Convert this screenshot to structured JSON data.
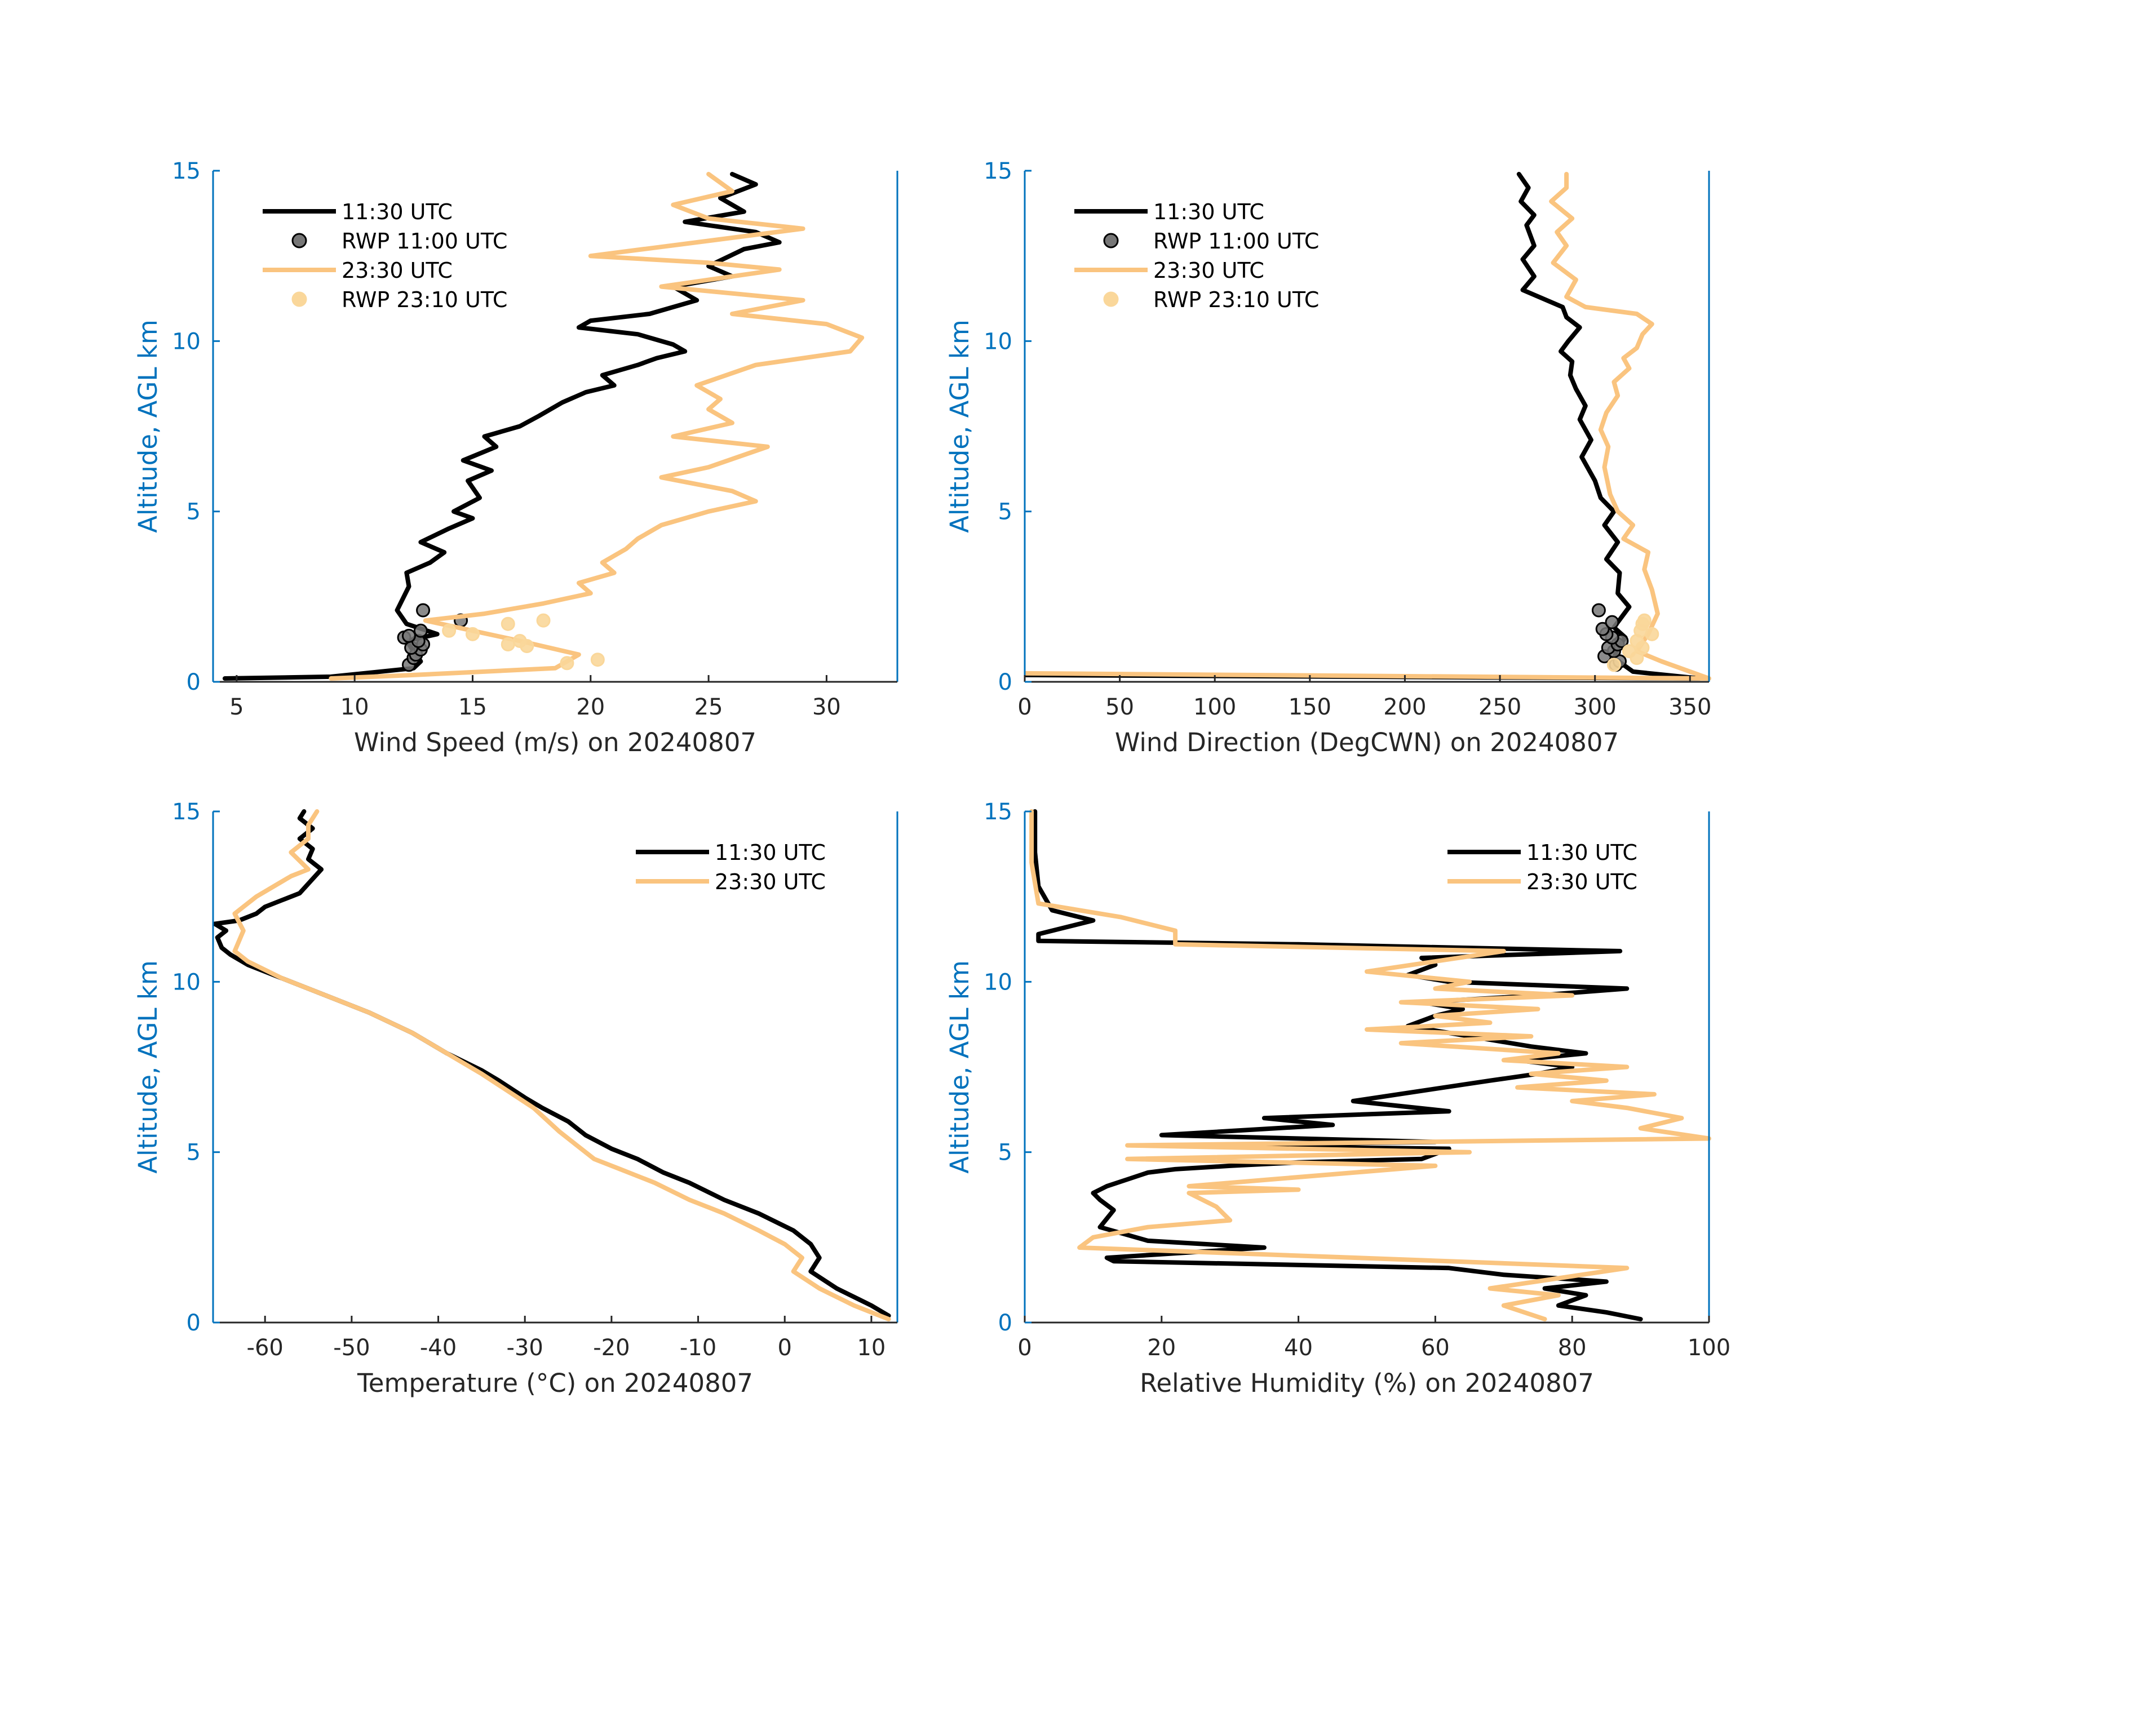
{
  "colors": {
    "axis_y": "#0072BD",
    "axis_x": "#262626",
    "series_1130": "#000000",
    "series_2330": "#FAC47F",
    "rwp_1100_fill": "#777777",
    "rwp_2310_fill": "#FAD79A"
  },
  "chart_data": [
    {
      "type": "line",
      "title": "",
      "xlabel": "Wind Speed (m/s) on 20240807",
      "ylabel": "Altitude, AGL km",
      "xlim": [
        4,
        33
      ],
      "ylim": [
        0,
        15
      ],
      "xticks": [
        5,
        10,
        15,
        20,
        25,
        30
      ],
      "xtick_labels": [
        "5",
        "10",
        "15",
        "20",
        "25",
        "30"
      ],
      "yticks": [
        0,
        5,
        10,
        15
      ],
      "ytick_labels": [
        "0",
        "5",
        "10",
        "15"
      ],
      "legend": [
        "11:30 UTC",
        "RWP 11:00 UTC",
        "23:30 UTC",
        "RWP 23:10 UTC"
      ],
      "legend_position": "top-left",
      "series": [
        {
          "name": "11:30 UTC",
          "kind": "line",
          "color": "#000000",
          "x": [
            4.5,
            9,
            12.5,
            12.8,
            12.5,
            12.2,
            13.5,
            12.2,
            11.8,
            12.3,
            12.2,
            13.2,
            13.8,
            12.8,
            14.0,
            15.0,
            14.2,
            15.3,
            14.8,
            15.8,
            14.6,
            16.0,
            15.5,
            17.0,
            17.8,
            18.8,
            19.8,
            21.0,
            20.5,
            22.0,
            22.8,
            24.0,
            23.5,
            22.0,
            19.5,
            20.0,
            22.5,
            24.5,
            23.5,
            26.0,
            25.0,
            26.5,
            28.0,
            27.0,
            24.0,
            26.5,
            25.5,
            27.0,
            26.0
          ],
          "y": [
            0.1,
            0.15,
            0.4,
            0.6,
            0.9,
            1.2,
            1.4,
            1.7,
            2.1,
            2.8,
            3.2,
            3.5,
            3.8,
            4.1,
            4.5,
            4.8,
            5.0,
            5.4,
            5.9,
            6.2,
            6.5,
            6.9,
            7.2,
            7.5,
            7.8,
            8.2,
            8.5,
            8.7,
            9.0,
            9.3,
            9.5,
            9.7,
            9.9,
            10.2,
            10.4,
            10.6,
            10.8,
            11.2,
            11.6,
            11.9,
            12.2,
            12.7,
            12.9,
            13.2,
            13.5,
            13.8,
            14.2,
            14.6,
            14.9
          ]
        },
        {
          "name": "RWP 11:00 UTC",
          "kind": "scatter",
          "color": "#777777",
          "x": [
            12.3,
            12.5,
            12.6,
            12.8,
            12.4,
            12.9,
            12.7,
            12.1,
            12.3,
            12.8,
            14.5,
            12.9
          ],
          "y": [
            0.5,
            0.7,
            0.8,
            0.95,
            1.0,
            1.1,
            1.2,
            1.3,
            1.35,
            1.5,
            1.8,
            2.1
          ]
        },
        {
          "name": "23:30 UTC",
          "kind": "line",
          "color": "#FAC47F",
          "x": [
            9,
            12.5,
            18.5,
            19.5,
            17.0,
            15.0,
            13.0,
            15.5,
            18.0,
            20.0,
            19.5,
            21.0,
            20.5,
            21.5,
            22.0,
            23.0,
            25.0,
            27.0,
            26.0,
            23.0,
            25.0,
            27.5,
            23.5,
            26.0,
            25.0,
            25.5,
            24.5,
            27.0,
            31.0,
            31.5,
            30.0,
            26.0,
            29.0,
            23.0,
            28.0,
            25.0,
            20.0,
            29.0,
            25.0,
            23.5,
            26.0,
            25.0
          ],
          "y": [
            0.1,
            0.2,
            0.4,
            0.8,
            1.2,
            1.5,
            1.8,
            2.0,
            2.3,
            2.6,
            2.9,
            3.2,
            3.5,
            3.9,
            4.2,
            4.6,
            5.0,
            5.3,
            5.6,
            6.0,
            6.3,
            6.9,
            7.2,
            7.6,
            8.0,
            8.3,
            8.7,
            9.3,
            9.7,
            10.1,
            10.5,
            10.8,
            11.2,
            11.6,
            12.1,
            12.3,
            12.5,
            13.3,
            13.6,
            14.0,
            14.4,
            14.9
          ]
        },
        {
          "name": "RWP 23:10 UTC",
          "kind": "scatter",
          "color": "#FAD79A",
          "x": [
            19.0,
            20.3,
            16.5,
            17.3,
            17.0,
            15.0,
            14.0,
            16.5,
            18.0
          ],
          "y": [
            0.55,
            0.65,
            1.1,
            1.05,
            1.2,
            1.4,
            1.5,
            1.7,
            1.8
          ]
        }
      ]
    },
    {
      "type": "line",
      "title": "",
      "xlabel": "Wind Direction (DegCWN) on 20240807",
      "ylabel": "Altitude, AGL km",
      "xlim": [
        0,
        360
      ],
      "ylim": [
        0,
        15
      ],
      "xticks": [
        0,
        50,
        100,
        150,
        200,
        250,
        300,
        350
      ],
      "xtick_labels": [
        "0",
        "50",
        "100",
        "150",
        "200",
        "250",
        "300",
        "350"
      ],
      "yticks": [
        0,
        5,
        10,
        15
      ],
      "ytick_labels": [
        "0",
        "5",
        "10",
        "15"
      ],
      "legend": [
        "11:30 UTC",
        "RWP 11:00 UTC",
        "23:30 UTC",
        "RWP 23:10 UTC"
      ],
      "legend_position": "top-left",
      "series": [
        {
          "name": "11:30 UTC",
          "kind": "line",
          "color": "#000000",
          "x": [
            0,
            355,
            320,
            310,
            312,
            316,
            310,
            318,
            312,
            313,
            306,
            312,
            305,
            310,
            303,
            300,
            293,
            298,
            292,
            295,
            290,
            287,
            288,
            282,
            286,
            292,
            285,
            283,
            262,
            268,
            262,
            268,
            264,
            268,
            261,
            265,
            260
          ],
          "y": [
            0.2,
            0.1,
            0.3,
            0.7,
            1.0,
            1.3,
            1.6,
            2.2,
            2.6,
            3.2,
            3.6,
            4.1,
            4.6,
            5.0,
            5.4,
            5.9,
            6.6,
            7.1,
            7.7,
            8.1,
            8.6,
            9.0,
            9.4,
            9.7,
            10.0,
            10.4,
            10.7,
            11.0,
            11.5,
            11.9,
            12.4,
            12.8,
            13.4,
            13.7,
            14.1,
            14.5,
            14.9
          ]
        },
        {
          "name": "RWP 11:00 UTC",
          "kind": "scatter",
          "color": "#777777",
          "x": [
            311,
            313,
            305,
            310,
            307,
            312,
            314,
            309,
            306,
            304,
            309,
            302
          ],
          "y": [
            0.5,
            0.6,
            0.75,
            0.9,
            1.0,
            1.1,
            1.2,
            1.3,
            1.4,
            1.55,
            1.75,
            2.1
          ]
        },
        {
          "name": "23:30 UTC",
          "kind": "line",
          "color": "#FAC47F",
          "x": [
            0,
            360,
            335,
            322,
            328,
            333,
            330,
            326,
            328,
            315,
            320,
            312,
            308,
            305,
            307,
            303,
            306,
            312,
            310,
            318,
            315,
            322,
            325,
            330,
            322,
            295,
            285,
            290,
            278,
            285,
            280,
            288,
            277,
            285,
            285
          ],
          "y": [
            0.25,
            0.1,
            0.6,
            0.9,
            1.4,
            2.0,
            2.7,
            3.3,
            3.8,
            4.2,
            4.6,
            5.0,
            5.5,
            6.3,
            6.9,
            7.4,
            7.9,
            8.4,
            8.8,
            9.2,
            9.5,
            9.8,
            10.2,
            10.5,
            10.8,
            11.0,
            11.3,
            11.8,
            12.3,
            12.8,
            13.2,
            13.6,
            14.1,
            14.5,
            14.9
          ]
        },
        {
          "name": "RWP 23:10 UTC",
          "kind": "scatter",
          "color": "#FAD79A",
          "x": [
            310,
            322,
            318,
            325,
            322,
            330,
            324,
            325,
            326
          ],
          "y": [
            0.5,
            0.7,
            0.9,
            1.0,
            1.2,
            1.4,
            1.5,
            1.7,
            1.8
          ]
        }
      ]
    },
    {
      "type": "line",
      "title": "",
      "xlabel": "Temperature (°C) on 20240807",
      "ylabel": "Altitude, AGL km",
      "xlim": [
        -66,
        13
      ],
      "ylim": [
        0,
        15
      ],
      "xticks": [
        -60,
        -50,
        -40,
        -30,
        -20,
        -10,
        0,
        10
      ],
      "xtick_labels": [
        "-60",
        "-50",
        "-40",
        "-30",
        "-20",
        "-10",
        "0",
        "10"
      ],
      "yticks": [
        0,
        5,
        10,
        15
      ],
      "ytick_labels": [
        "0",
        "5",
        "10",
        "15"
      ],
      "legend": [
        "11:30 UTC",
        "23:30 UTC"
      ],
      "legend_position": "top-right",
      "series": [
        {
          "name": "11:30 UTC",
          "kind": "line",
          "color": "#000000",
          "x": [
            12,
            10,
            6,
            3,
            4,
            3,
            1,
            -3,
            -7,
            -11,
            -14,
            -17,
            -20,
            -23,
            -25,
            -28,
            -30,
            -33,
            -35,
            -39,
            -43,
            -48,
            -53,
            -58,
            -62,
            -64,
            -65,
            -65.5,
            -64.5,
            -65.8,
            -63,
            -61,
            -60,
            -58,
            -56,
            -53.5,
            -55,
            -54.5,
            -56,
            -54.5,
            -56,
            -55.5
          ],
          "y": [
            0.2,
            0.5,
            1.0,
            1.5,
            1.9,
            2.3,
            2.7,
            3.2,
            3.6,
            4.1,
            4.4,
            4.8,
            5.1,
            5.5,
            5.9,
            6.3,
            6.6,
            7.1,
            7.4,
            7.9,
            8.5,
            9.1,
            9.6,
            10.1,
            10.5,
            10.8,
            11.0,
            11.3,
            11.5,
            11.7,
            11.8,
            12.0,
            12.2,
            12.4,
            12.6,
            13.3,
            13.6,
            13.9,
            14.2,
            14.5,
            14.8,
            15.0
          ]
        },
        {
          "name": "23:30 UTC",
          "kind": "line",
          "color": "#FAC47F",
          "x": [
            12,
            8,
            4,
            1,
            2,
            0,
            -3,
            -7,
            -11,
            -15,
            -19,
            -22,
            -24,
            -26,
            -29,
            -32,
            -35,
            -39,
            -43,
            -48,
            -53,
            -58,
            -62,
            -63.5,
            -62.5,
            -63.5,
            -61,
            -59,
            -57,
            -55,
            -57,
            -55,
            -55,
            -54
          ],
          "y": [
            0.1,
            0.5,
            1.0,
            1.5,
            1.9,
            2.3,
            2.7,
            3.2,
            3.6,
            4.1,
            4.5,
            4.8,
            5.2,
            5.6,
            6.3,
            6.8,
            7.3,
            7.9,
            8.5,
            9.1,
            9.6,
            10.1,
            10.6,
            10.9,
            11.5,
            12.0,
            12.5,
            12.8,
            13.1,
            13.3,
            13.8,
            14.2,
            14.6,
            15.0
          ]
        }
      ]
    },
    {
      "type": "line",
      "title": "",
      "xlabel": "Relative Humidity (%) on 20240807",
      "ylabel": "Altitude, AGL km",
      "xlim": [
        0,
        100
      ],
      "ylim": [
        0,
        15
      ],
      "xticks": [
        0,
        20,
        40,
        60,
        80,
        100
      ],
      "xtick_labels": [
        "0",
        "20",
        "40",
        "60",
        "80",
        "100"
      ],
      "yticks": [
        0,
        5,
        10,
        15
      ],
      "ytick_labels": [
        "0",
        "5",
        "10",
        "15"
      ],
      "legend": [
        "11:30 UTC",
        "23:30 UTC"
      ],
      "legend_position": "top-right",
      "series": [
        {
          "name": "11:30 UTC",
          "kind": "line",
          "color": "#000000",
          "x": [
            90,
            85,
            78,
            82,
            76,
            85,
            70,
            62,
            13,
            12,
            35,
            18,
            11,
            13,
            11,
            10,
            12,
            15,
            18,
            22,
            30,
            40,
            58,
            62,
            22,
            60,
            20,
            45,
            35,
            62,
            48,
            58,
            68,
            75,
            80,
            72,
            82,
            74,
            68,
            62,
            56,
            60,
            64,
            58,
            75,
            88,
            62,
            56,
            60,
            58,
            87,
            40,
            2,
            2,
            10,
            4,
            2,
            1.5,
            1.5
          ],
          "y": [
            0.1,
            0.3,
            0.5,
            0.8,
            1.0,
            1.2,
            1.4,
            1.6,
            1.8,
            1.9,
            2.2,
            2.4,
            2.8,
            3.3,
            3.6,
            3.8,
            4.0,
            4.2,
            4.4,
            4.5,
            4.6,
            4.7,
            4.8,
            5.1,
            5.2,
            5.3,
            5.5,
            5.8,
            6.0,
            6.2,
            6.5,
            6.8,
            7.1,
            7.3,
            7.5,
            7.7,
            7.9,
            8.1,
            8.3,
            8.5,
            8.7,
            9.0,
            9.2,
            9.4,
            9.6,
            9.8,
            10.0,
            10.2,
            10.5,
            10.7,
            10.9,
            11.1,
            11.2,
            11.4,
            11.8,
            12.1,
            12.8,
            13.8,
            15.0
          ]
        },
        {
          "name": "23:30 UTC",
          "kind": "line",
          "color": "#FAC47F",
          "x": [
            76,
            70,
            78,
            68,
            88,
            62,
            8,
            10,
            18,
            30,
            28,
            26,
            24,
            40,
            24,
            36,
            60,
            15,
            65,
            15,
            100,
            90,
            96,
            88,
            80,
            92,
            72,
            85,
            74,
            88,
            70,
            78,
            55,
            74,
            50,
            68,
            60,
            75,
            55,
            80,
            60,
            65,
            50,
            70,
            22,
            22,
            14,
            2,
            1,
            1
          ],
          "y": [
            0.1,
            0.5,
            0.8,
            1.0,
            1.6,
            1.8,
            2.2,
            2.5,
            2.8,
            3.0,
            3.4,
            3.6,
            3.8,
            3.9,
            4.0,
            4.2,
            4.6,
            4.8,
            5.0,
            5.2,
            5.4,
            5.7,
            6.0,
            6.3,
            6.5,
            6.7,
            6.9,
            7.1,
            7.3,
            7.5,
            7.7,
            7.9,
            8.2,
            8.4,
            8.6,
            8.8,
            9.0,
            9.2,
            9.4,
            9.6,
            9.8,
            10.0,
            10.3,
            10.9,
            11.1,
            11.5,
            11.9,
            12.3,
            13.5,
            15.0
          ]
        }
      ]
    }
  ]
}
